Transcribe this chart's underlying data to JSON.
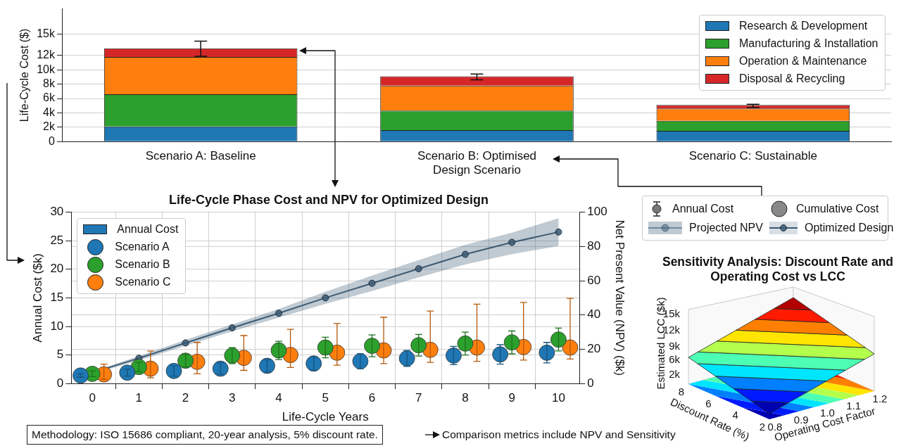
{
  "chart_data": [
    {
      "type": "bar",
      "stacked": true,
      "categories": [
        "Scenario A: Baseline",
        "Scenario B: Optimised Design Scenario",
        "Scenario C: Sustainable"
      ],
      "ylabel": "Life-Cycle Cost ($)",
      "ylim": [
        0,
        18500
      ],
      "yticks": [
        0,
        {
          "value": 2000,
          "label": "2k"
        },
        {
          "value": 4000,
          "label": "4k"
        },
        {
          "value": 6000,
          "label": "6k"
        },
        {
          "value": 8000,
          "label": "8k"
        },
        {
          "value": 10000,
          "label": "10k"
        },
        {
          "value": 12000,
          "label": "12k"
        },
        {
          "value": 15000,
          "label": "15k"
        }
      ],
      "grid": "y",
      "legend": "top right",
      "series": [
        {
          "name": "Research & Development",
          "color": "#1f77b4",
          "values": [
            2100,
            1600,
            1500
          ]
        },
        {
          "name": "Manufacturing & Installation",
          "color": "#2ca02c",
          "values": [
            4500,
            2700,
            1400
          ]
        },
        {
          "name": "Operation & Maintenance",
          "color": "#ff7f0e",
          "values": [
            5200,
            3500,
            1700
          ]
        },
        {
          "name": "Disposal & Recycling",
          "color": "#d62728",
          "values": [
            1200,
            1300,
            500
          ],
          "errors": [
            [
              11900,
              14000
            ],
            [
              8600,
              9400
            ],
            [
              4750,
              5200
            ]
          ]
        }
      ]
    },
    {
      "type": "scatter",
      "title": "Life-Cycle Phase Cost and NPV for Optimized Design",
      "xlabel": "Life-Cycle Years",
      "ylabel": "Annual Cost ($k)",
      "y2label": "Net Present Value (NPV) ($k)",
      "xlim": [
        -0.45,
        10.45
      ],
      "xticks": [
        0,
        1,
        2,
        3,
        4,
        5,
        6,
        7,
        8,
        9,
        10
      ],
      "ylim": [
        0,
        30
      ],
      "yticks": [
        0,
        5,
        10,
        15,
        20,
        25,
        30
      ],
      "y2lim": [
        0,
        100
      ],
      "y2ticks": [
        0,
        20,
        40,
        60,
        80,
        100
      ],
      "grid": true,
      "legend": "top left",
      "marker": "circle",
      "series": [
        {
          "name": "Annual Cost",
          "type": "bar",
          "color": "#1f77b4",
          "values": [
            null,
            null,
            null,
            null,
            null,
            null,
            null,
            null,
            null,
            null,
            null
          ]
        },
        {
          "name": "Scenario A",
          "color": "#1f77b4",
          "x": [
            -0.25,
            0.75,
            1.75,
            2.75,
            3.75,
            4.75,
            5.75,
            6.75,
            7.75,
            8.75,
            9.75
          ],
          "values": [
            1.4,
            1.9,
            2.2,
            2.6,
            3.1,
            3.5,
            3.9,
            4.4,
            4.9,
            5.1,
            5.4
          ],
          "errors": [
            0.3,
            0.6,
            0.9,
            1.0,
            1.1,
            1.2,
            1.3,
            1.4,
            1.6,
            1.7,
            1.8
          ]
        },
        {
          "name": "Scenario B",
          "color": "#2ca02c",
          "x": [
            0,
            1,
            2,
            3,
            4,
            5,
            6,
            7,
            8,
            9,
            10
          ],
          "values": [
            1.7,
            2.9,
            4.0,
            4.9,
            5.8,
            6.3,
            6.6,
            6.7,
            7.0,
            7.2,
            7.7
          ],
          "errors": [
            0.5,
            0.8,
            1.1,
            1.4,
            1.6,
            1.8,
            1.9,
            1.9,
            2.0,
            2.0,
            2.0
          ]
        },
        {
          "name": "Scenario C",
          "color": "#ff7f0e",
          "x": [
            0.25,
            1.25,
            2.25,
            3.25,
            4.25,
            5.25,
            6.25,
            7.25,
            8.25,
            9.25,
            10.25
          ],
          "values": [
            1.6,
            2.6,
            3.8,
            4.5,
            5.0,
            5.4,
            5.8,
            5.9,
            6.3,
            6.4,
            6.3
          ],
          "errors": [
            [
              0.7,
              3.4
            ],
            [
              1.0,
              5.7
            ],
            [
              1.7,
              7.2
            ],
            [
              2.3,
              8.4
            ],
            [
              2.8,
              9.5
            ],
            [
              3.2,
              10.5
            ],
            [
              3.5,
              11.6
            ],
            [
              3.7,
              12.7
            ],
            [
              3.9,
              13.9
            ],
            [
              4.1,
              14.2
            ],
            [
              4.3,
              14.9
            ]
          ]
        },
        {
          "type": "line",
          "axis": "y2",
          "color": "#3b5b74",
          "x": [
            0,
            1,
            2,
            3,
            4,
            5,
            6,
            7,
            8,
            9,
            10
          ],
          "values": [
            6.3,
            14.8,
            23.7,
            32.5,
            41,
            50,
            58.5,
            67,
            75.4,
            82.4,
            88.4
          ],
          "lower": [
            5.5,
            13.5,
            22,
            30.5,
            38.5,
            46.5,
            54,
            62,
            69.5,
            75.5,
            80.3
          ],
          "upper": [
            7,
            16,
            25.5,
            34.5,
            43.5,
            53.5,
            63,
            72,
            81,
            88,
            96.5
          ]
        }
      ],
      "annotations": [
        "Annual Cost",
        "Cumulative Cost",
        "Projected NPV",
        "Optimized Design",
        "Methodology: ISO 15686 compliant, 20-year analysis, 5% discount rate.",
        "Comparison metrics include NPV and Sensitivity"
      ]
    },
    {
      "type": "other",
      "title": "Sensitivity Analysis: Discount Rate and Operating Cost vs LCC",
      "xlabel": "Operating Cost Factor",
      "ylabel": "Discount Rate (%)",
      "y2label": "Estimated LCC ($k)",
      "annotations": [
        "2",
        "4",
        "6",
        "8",
        "0.8",
        "0.9",
        "1.0",
        "1.1",
        "1.2",
        "2k",
        "6k",
        "9k",
        "12k",
        "15k"
      ]
    }
  ]
}
